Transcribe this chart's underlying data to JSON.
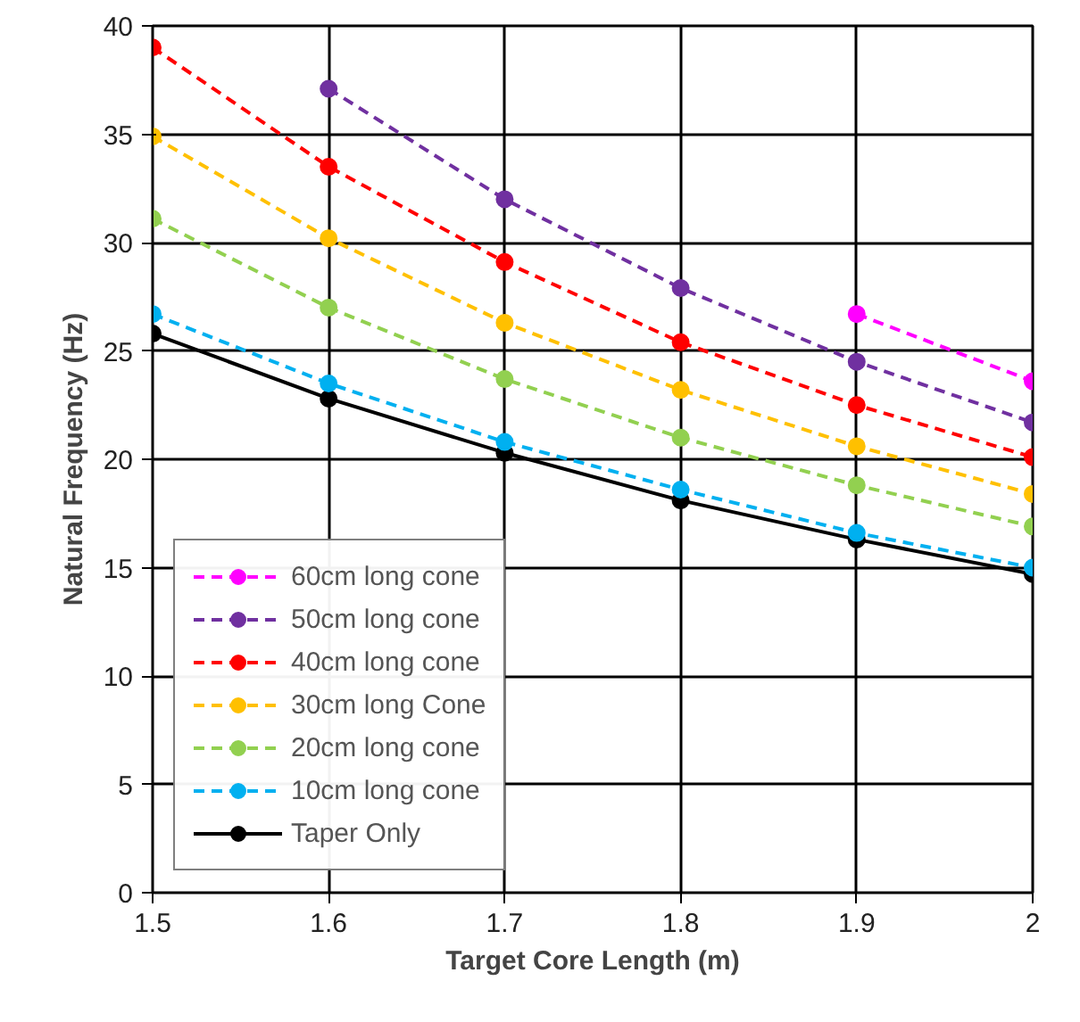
{
  "chart_data": {
    "type": "line",
    "xlabel": "Target Core Length (m)",
    "ylabel": "Natural Frequency (Hz)",
    "x": [
      1.5,
      1.6,
      1.7,
      1.8,
      1.9,
      2.0
    ],
    "xlim": [
      1.5,
      2.0
    ],
    "xticks": [
      1.5,
      1.6,
      1.7,
      1.8,
      1.9,
      {
        "value": 2.0,
        "label": "2"
      }
    ],
    "ylim": [
      0,
      40
    ],
    "yticks": [
      0,
      5,
      10,
      15,
      20,
      25,
      30,
      35,
      40
    ],
    "grid": true,
    "legend": "bottom left",
    "marker": "circle",
    "series": [
      {
        "name": "60cm long cone",
        "color": "#ff00ff",
        "line_style": "dashed",
        "values": [
          null,
          null,
          null,
          null,
          26.7,
          23.6
        ]
      },
      {
        "name": "50cm long cone",
        "color": "#7030a0",
        "line_style": "dashed",
        "values": [
          null,
          37.1,
          32.0,
          27.9,
          24.5,
          21.7
        ]
      },
      {
        "name": "40cm long cone",
        "color": "#ff0000",
        "line_style": "dashed",
        "values": [
          39.0,
          33.5,
          29.1,
          25.4,
          22.5,
          20.1
        ]
      },
      {
        "name": "30cm long Cone",
        "color": "#ffc000",
        "line_style": "dashed",
        "values": [
          34.9,
          30.2,
          26.3,
          23.2,
          20.6,
          18.4
        ]
      },
      {
        "name": "20cm long cone",
        "color": "#92d050",
        "line_style": "dashed",
        "values": [
          31.1,
          27.0,
          23.7,
          21.0,
          18.8,
          16.9
        ]
      },
      {
        "name": "10cm long cone",
        "color": "#00b0f0",
        "line_style": "dashed",
        "values": [
          26.7,
          23.5,
          20.8,
          18.6,
          16.6,
          15.0
        ]
      },
      {
        "name": "Taper Only",
        "color": "#000000",
        "line_style": "solid",
        "values": [
          25.8,
          22.8,
          20.3,
          18.1,
          16.3,
          14.7
        ]
      }
    ]
  }
}
